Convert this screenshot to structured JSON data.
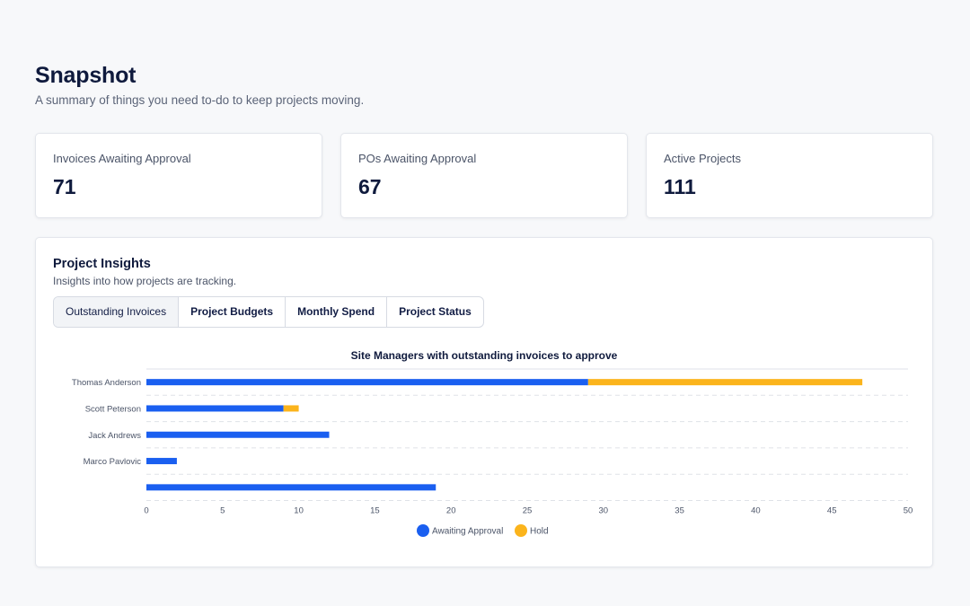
{
  "page": {
    "title": "Snapshot",
    "subtitle": "A summary of things you need to-do to keep projects moving."
  },
  "stats": [
    {
      "label": "Invoices Awaiting Approval",
      "value": "71"
    },
    {
      "label": "POs Awaiting Approval",
      "value": "67"
    },
    {
      "label": "Active Projects",
      "value": "111"
    }
  ],
  "insights": {
    "title": "Project Insights",
    "subtitle": "Insights into how projects are tracking.",
    "tabs": [
      {
        "label": "Outstanding Invoices",
        "active": true
      },
      {
        "label": "Project Budgets",
        "active": false
      },
      {
        "label": "Monthly Spend",
        "active": false
      },
      {
        "label": "Project Status",
        "active": false
      }
    ]
  },
  "colors": {
    "awaiting": "#1a5ff0",
    "hold": "#fbb41c",
    "grid": "#dfe2e8",
    "axis_text": "#4b5468",
    "title_text": "#0f1a3d"
  },
  "chart_data": {
    "type": "bar",
    "orientation": "horizontal",
    "stacked": true,
    "title": "Site Managers with outstanding invoices to approve",
    "categories": [
      "Thomas Anderson",
      "Scott Peterson",
      "Jack Andrews",
      "Marco Pavlovic",
      ""
    ],
    "series": [
      {
        "name": "Awaiting Approval",
        "values": [
          29,
          9,
          12,
          2,
          19
        ]
      },
      {
        "name": "Hold",
        "values": [
          18,
          1,
          0,
          0,
          0
        ]
      }
    ],
    "xlim": [
      0,
      50
    ],
    "xticks": [
      0,
      5,
      10,
      15,
      20,
      25,
      30,
      35,
      40,
      45,
      50
    ],
    "grid": "horizontal dashed",
    "legend_position": "bottom"
  }
}
